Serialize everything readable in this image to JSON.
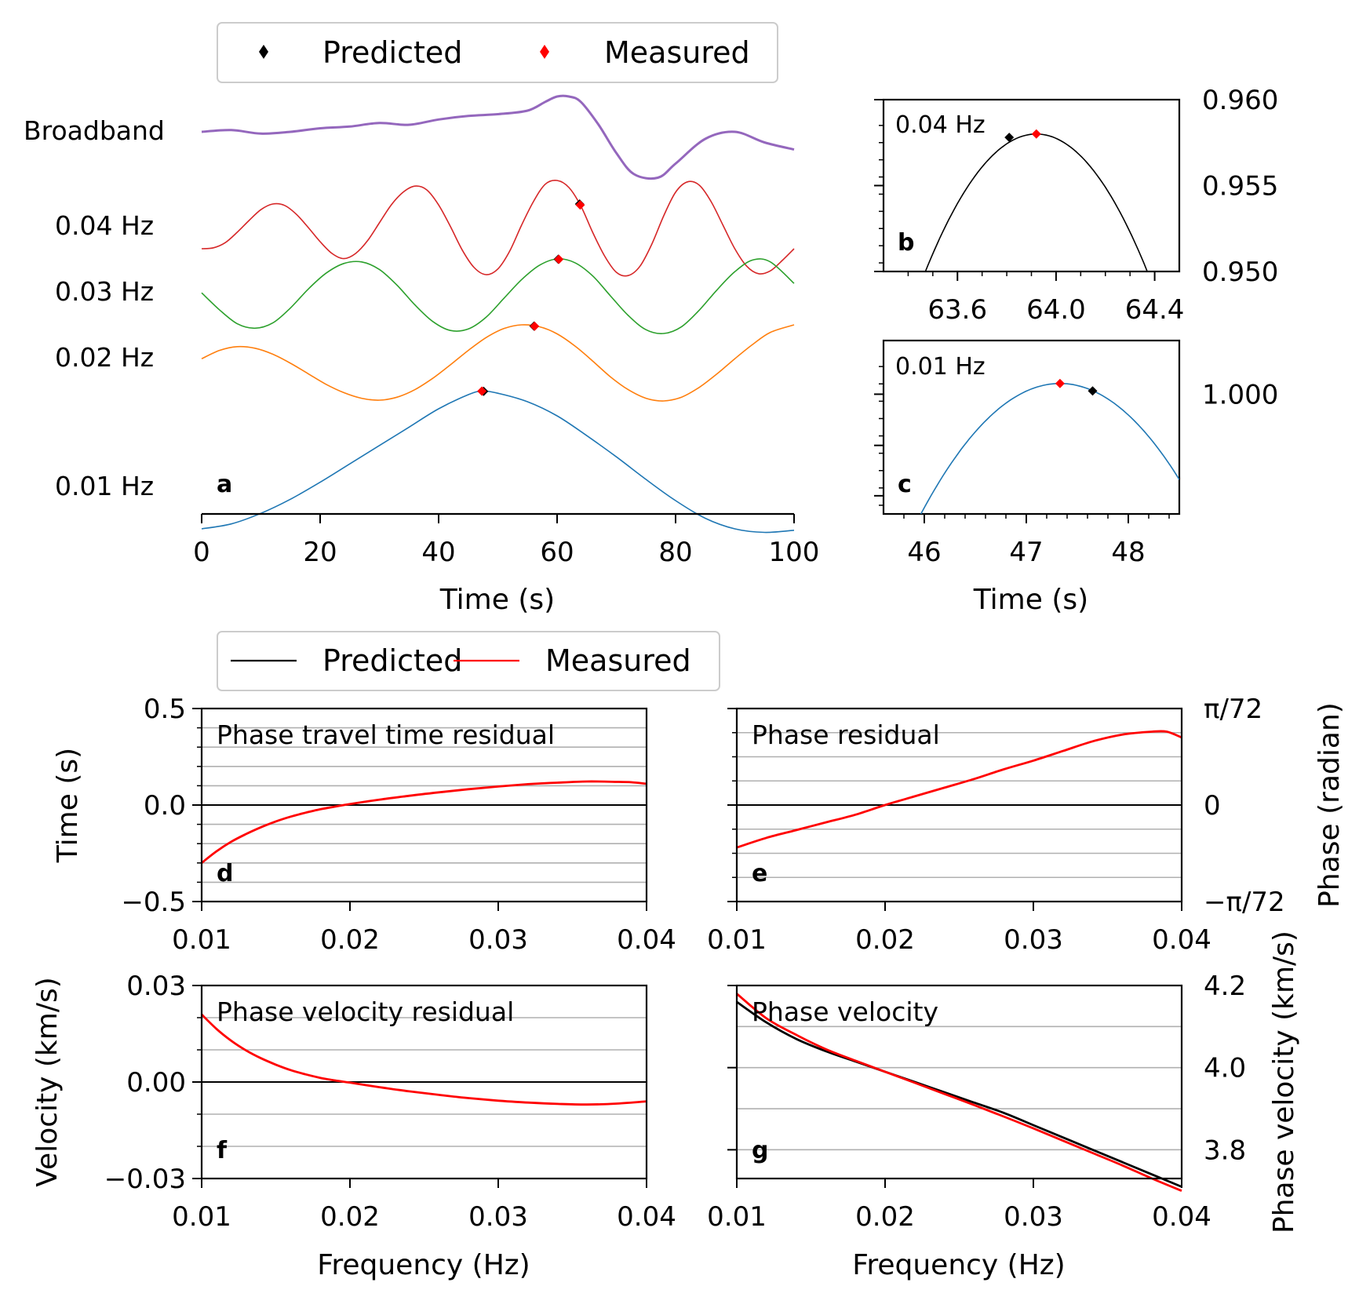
{
  "chart_data": [
    {
      "panel_label": "a",
      "type": "line",
      "xlabel": "Time (s)",
      "xlim": [
        0,
        100
      ],
      "xticks": [
        "0",
        "20",
        "40",
        "60",
        "80",
        "100"
      ],
      "legend": {
        "placement": "top",
        "entries": [
          {
            "label": "Predicted",
            "marker": "diamond",
            "color": "#000000"
          },
          {
            "label": "Measured",
            "marker": "diamond",
            "color": "#ff0000"
          }
        ]
      },
      "series": [
        {
          "name": "Broadband",
          "color": "#9467bd",
          "x": [
            0,
            5,
            10,
            15,
            20,
            25,
            30,
            35,
            40,
            45,
            50,
            55,
            58,
            60,
            62,
            64,
            67,
            70,
            73,
            77,
            80,
            85,
            90,
            95,
            100
          ],
          "y": [
            0.0,
            0.05,
            -0.05,
            0.0,
            0.1,
            0.15,
            0.25,
            0.2,
            0.35,
            0.45,
            0.5,
            0.6,
            0.85,
            1.0,
            1.0,
            0.85,
            0.2,
            -0.6,
            -1.2,
            -1.3,
            -0.9,
            -0.2,
            0.0,
            -0.3,
            -0.5
          ]
        },
        {
          "name": "0.04 Hz",
          "color": "#d62728",
          "x": [
            0,
            2,
            4,
            6,
            8,
            10,
            12,
            14,
            16,
            18,
            20,
            22,
            24,
            26,
            28,
            30,
            32,
            34,
            36,
            38,
            40,
            42,
            44,
            46,
            48,
            50,
            52,
            54,
            56,
            58,
            60,
            62,
            64,
            66,
            68,
            70,
            72,
            74,
            76,
            78,
            80,
            82,
            84,
            86,
            88,
            90,
            92,
            94,
            96,
            98,
            100
          ],
          "y": [
            -0.45,
            -0.43,
            -0.32,
            -0.1,
            0.15,
            0.38,
            0.5,
            0.47,
            0.28,
            0.0,
            -0.3,
            -0.55,
            -0.66,
            -0.55,
            -0.28,
            0.1,
            0.48,
            0.75,
            0.88,
            0.8,
            0.48,
            0.02,
            -0.48,
            -0.85,
            -1.0,
            -0.88,
            -0.5,
            0.05,
            0.55,
            0.92,
            1.0,
            0.85,
            0.46,
            -0.1,
            -0.6,
            -0.95,
            -1.02,
            -0.82,
            -0.35,
            0.25,
            0.75,
            0.97,
            0.9,
            0.55,
            0.05,
            -0.45,
            -0.82,
            -0.98,
            -0.92,
            -0.7,
            -0.45
          ]
        },
        {
          "name": "0.03 Hz",
          "color": "#2ca02c",
          "x": [
            0,
            3,
            6,
            9,
            12,
            15,
            18,
            21,
            24,
            27,
            30,
            33,
            36,
            39,
            42,
            45,
            48,
            51,
            54,
            57,
            60,
            63,
            66,
            69,
            72,
            75,
            78,
            81,
            84,
            87,
            90,
            93,
            96,
            100
          ],
          "y": [
            0.1,
            -0.35,
            -0.72,
            -0.84,
            -0.7,
            -0.3,
            0.2,
            0.62,
            0.88,
            0.92,
            0.72,
            0.3,
            -0.22,
            -0.66,
            -0.9,
            -0.86,
            -0.55,
            -0.05,
            0.45,
            0.83,
            1.0,
            0.9,
            0.55,
            0.02,
            -0.5,
            -0.88,
            -0.98,
            -0.8,
            -0.36,
            0.18,
            0.66,
            0.97,
            0.92,
            0.35
          ]
        },
        {
          "name": "0.02 Hz",
          "color": "#ff7f0e",
          "x": [
            0,
            3,
            6,
            9,
            12,
            15,
            18,
            21,
            24,
            27,
            30,
            33,
            36,
            39,
            42,
            45,
            48,
            51,
            54,
            57,
            60,
            63,
            66,
            69,
            72,
            75,
            78,
            81,
            84,
            87,
            90,
            93,
            96,
            100
          ],
          "y": [
            0.1,
            0.32,
            0.42,
            0.38,
            0.22,
            -0.02,
            -0.3,
            -0.58,
            -0.8,
            -0.95,
            -1.0,
            -0.92,
            -0.72,
            -0.42,
            -0.06,
            0.32,
            0.66,
            0.9,
            1.0,
            0.95,
            0.76,
            0.44,
            0.04,
            -0.38,
            -0.72,
            -0.95,
            -1.02,
            -0.92,
            -0.66,
            -0.3,
            0.1,
            0.48,
            0.8,
            1.0
          ]
        },
        {
          "name": "0.01 Hz",
          "color": "#1f77b4",
          "x": [
            0,
            5,
            10,
            15,
            20,
            25,
            30,
            35,
            40,
            45,
            47.3,
            50,
            55,
            60,
            65,
            70,
            75,
            80,
            85,
            90,
            95,
            100
          ],
          "y": [
            -1.0,
            -0.93,
            -0.78,
            -0.58,
            -0.34,
            -0.08,
            0.18,
            0.44,
            0.7,
            0.9,
            0.95,
            0.92,
            0.8,
            0.6,
            0.32,
            0.02,
            -0.3,
            -0.6,
            -0.85,
            -1.0,
            -1.05,
            -1.02
          ]
        }
      ],
      "markers": [
        {
          "trace": "0.04 Hz",
          "predicted_t": 63.8,
          "measured_t": 63.9
        },
        {
          "trace": "0.03 Hz",
          "predicted_t": 60.2,
          "measured_t": 60.3
        },
        {
          "trace": "0.02 Hz",
          "predicted_t": 56.1,
          "measured_t": 56.2
        },
        {
          "trace": "0.01 Hz",
          "predicted_t": 47.6,
          "measured_t": 47.3
        }
      ]
    },
    {
      "panel_label": "b",
      "type": "line",
      "annotation": "0.04 Hz",
      "xlim": [
        63.3,
        64.5
      ],
      "xticks": [
        63.6,
        64.0,
        64.4
      ],
      "xticklabels": [
        "63.6",
        "64.0",
        "64.4"
      ],
      "ylim": [
        0.95,
        0.96
      ],
      "yticks": [
        0.95,
        0.955,
        0.96
      ],
      "yticklabels": [
        "0.950",
        "0.955",
        "0.960"
      ],
      "curve": {
        "color": "#000000",
        "peak_x": 63.92,
        "peak_y": 0.958,
        "curvature": 0.0395
      },
      "predicted": {
        "x": 63.81,
        "y": 0.9578
      },
      "measured": {
        "x": 63.92,
        "y": 0.958
      }
    },
    {
      "panel_label": "c",
      "type": "line",
      "annotation": "0.01 Hz",
      "xlabel": "Time (s)",
      "xlim": [
        45.6,
        48.5
      ],
      "xticks": [
        46,
        47,
        48
      ],
      "xticklabels": [
        "46",
        "47",
        "48"
      ],
      "ylim": [
        0.9855,
        1.0065
      ],
      "yticks": [
        1.0
      ],
      "yticklabels": [
        "1.000"
      ],
      "curve": {
        "color": "#1f77b4",
        "peak_x": 47.33,
        "peak_y": 1.0013,
        "curvature": 0.0085
      },
      "predicted": {
        "x": 47.65,
        "y": 1.0004
      },
      "measured": {
        "x": 47.33,
        "y": 1.0013
      }
    },
    {
      "panel_label": "d",
      "type": "line",
      "annotation": "Phase travel time residual",
      "ylabel": "Time (s)",
      "legend": {
        "placement": "top-left",
        "entries": [
          {
            "label": "Predicted",
            "color": "#000000"
          },
          {
            "label": "Measured",
            "color": "#ff0000"
          }
        ]
      },
      "xlim": [
        0.01,
        0.04
      ],
      "xticklabels": [
        "0.01",
        "0.02",
        "0.03",
        "0.04"
      ],
      "ylim": [
        -0.5,
        0.5
      ],
      "yticklabels": [
        "−0.5",
        "0.0",
        "0.5"
      ],
      "x": [
        0.01,
        0.011,
        0.012,
        0.013,
        0.014,
        0.015,
        0.016,
        0.017,
        0.018,
        0.019,
        0.02,
        0.022,
        0.024,
        0.026,
        0.028,
        0.03,
        0.032,
        0.034,
        0.036,
        0.038,
        0.039,
        0.04
      ],
      "series": [
        {
          "name": "Measured",
          "color": "#ff0000",
          "values": [
            -0.3,
            -0.24,
            -0.19,
            -0.15,
            -0.115,
            -0.085,
            -0.06,
            -0.04,
            -0.022,
            -0.008,
            0.005,
            0.028,
            0.048,
            0.066,
            0.082,
            0.096,
            0.108,
            0.116,
            0.122,
            0.12,
            0.118,
            0.11
          ]
        }
      ]
    },
    {
      "panel_label": "e",
      "type": "line",
      "annotation": "Phase residual",
      "ylabel": "Phase (radian)",
      "xlim": [
        0.01,
        0.04
      ],
      "xticklabels": [
        "0.01",
        "0.02",
        "0.03",
        "0.04"
      ],
      "ylim": [
        -1,
        1
      ],
      "yticklabels": [
        "−π/72",
        "0",
        "π/72"
      ],
      "x": [
        0.01,
        0.012,
        0.014,
        0.016,
        0.018,
        0.02,
        0.022,
        0.024,
        0.026,
        0.028,
        0.03,
        0.032,
        0.034,
        0.036,
        0.038,
        0.039,
        0.04
      ],
      "series": [
        {
          "name": "Measured",
          "color": "#ff0000",
          "values": [
            -0.44,
            -0.34,
            -0.26,
            -0.18,
            -0.1,
            0.0,
            0.09,
            0.18,
            0.27,
            0.37,
            0.46,
            0.56,
            0.66,
            0.73,
            0.76,
            0.76,
            0.7
          ]
        }
      ]
    },
    {
      "panel_label": "f",
      "type": "line",
      "annotation": "Phase velocity residual",
      "ylabel": "Velocity (km/s)",
      "xlabel": "Frequency (Hz)",
      "xlim": [
        0.01,
        0.04
      ],
      "xticklabels": [
        "0.01",
        "0.02",
        "0.03",
        "0.04"
      ],
      "ylim": [
        -0.03,
        0.03
      ],
      "yticklabels": [
        "−0.03",
        "0.00",
        "0.03"
      ],
      "x": [
        0.01,
        0.011,
        0.012,
        0.013,
        0.014,
        0.015,
        0.016,
        0.017,
        0.018,
        0.019,
        0.02,
        0.022,
        0.024,
        0.026,
        0.028,
        0.03,
        0.032,
        0.034,
        0.036,
        0.038,
        0.04
      ],
      "series": [
        {
          "name": "Measured",
          "color": "#ff0000",
          "values": [
            0.021,
            0.0165,
            0.0128,
            0.0098,
            0.0074,
            0.0054,
            0.0037,
            0.0024,
            0.0013,
            0.0005,
            -0.0002,
            -0.0016,
            -0.0029,
            -0.004,
            -0.005,
            -0.0058,
            -0.0064,
            -0.0068,
            -0.007,
            -0.0067,
            -0.006
          ]
        }
      ]
    },
    {
      "panel_label": "g",
      "type": "line",
      "annotation": "Phase velocity",
      "ylabel": "Phase velocity (km/s)",
      "xlabel": "Frequency (Hz)",
      "xlim": [
        0.01,
        0.04
      ],
      "xticklabels": [
        "0.01",
        "0.02",
        "0.03",
        "0.04"
      ],
      "ylim": [
        3.73,
        4.2
      ],
      "yticks": [
        3.8,
        4.0,
        4.2
      ],
      "yticklabels": [
        "3.8",
        "4.0",
        "4.2"
      ],
      "x": [
        0.01,
        0.012,
        0.014,
        0.016,
        0.018,
        0.02,
        0.022,
        0.024,
        0.026,
        0.028,
        0.03,
        0.032,
        0.034,
        0.036,
        0.038,
        0.04
      ],
      "series": [
        {
          "name": "Predicted",
          "color": "#000000",
          "values": [
            4.16,
            4.11,
            4.07,
            4.04,
            4.015,
            3.99,
            3.965,
            3.94,
            3.915,
            3.89,
            3.86,
            3.83,
            3.8,
            3.77,
            3.74,
            3.71
          ]
        },
        {
          "name": "Measured",
          "color": "#ff0000",
          "values": [
            4.18,
            4.12,
            4.08,
            4.045,
            4.017,
            3.99,
            3.963,
            3.936,
            3.909,
            3.881,
            3.852,
            3.822,
            3.792,
            3.762,
            3.73,
            3.7
          ]
        }
      ]
    }
  ]
}
